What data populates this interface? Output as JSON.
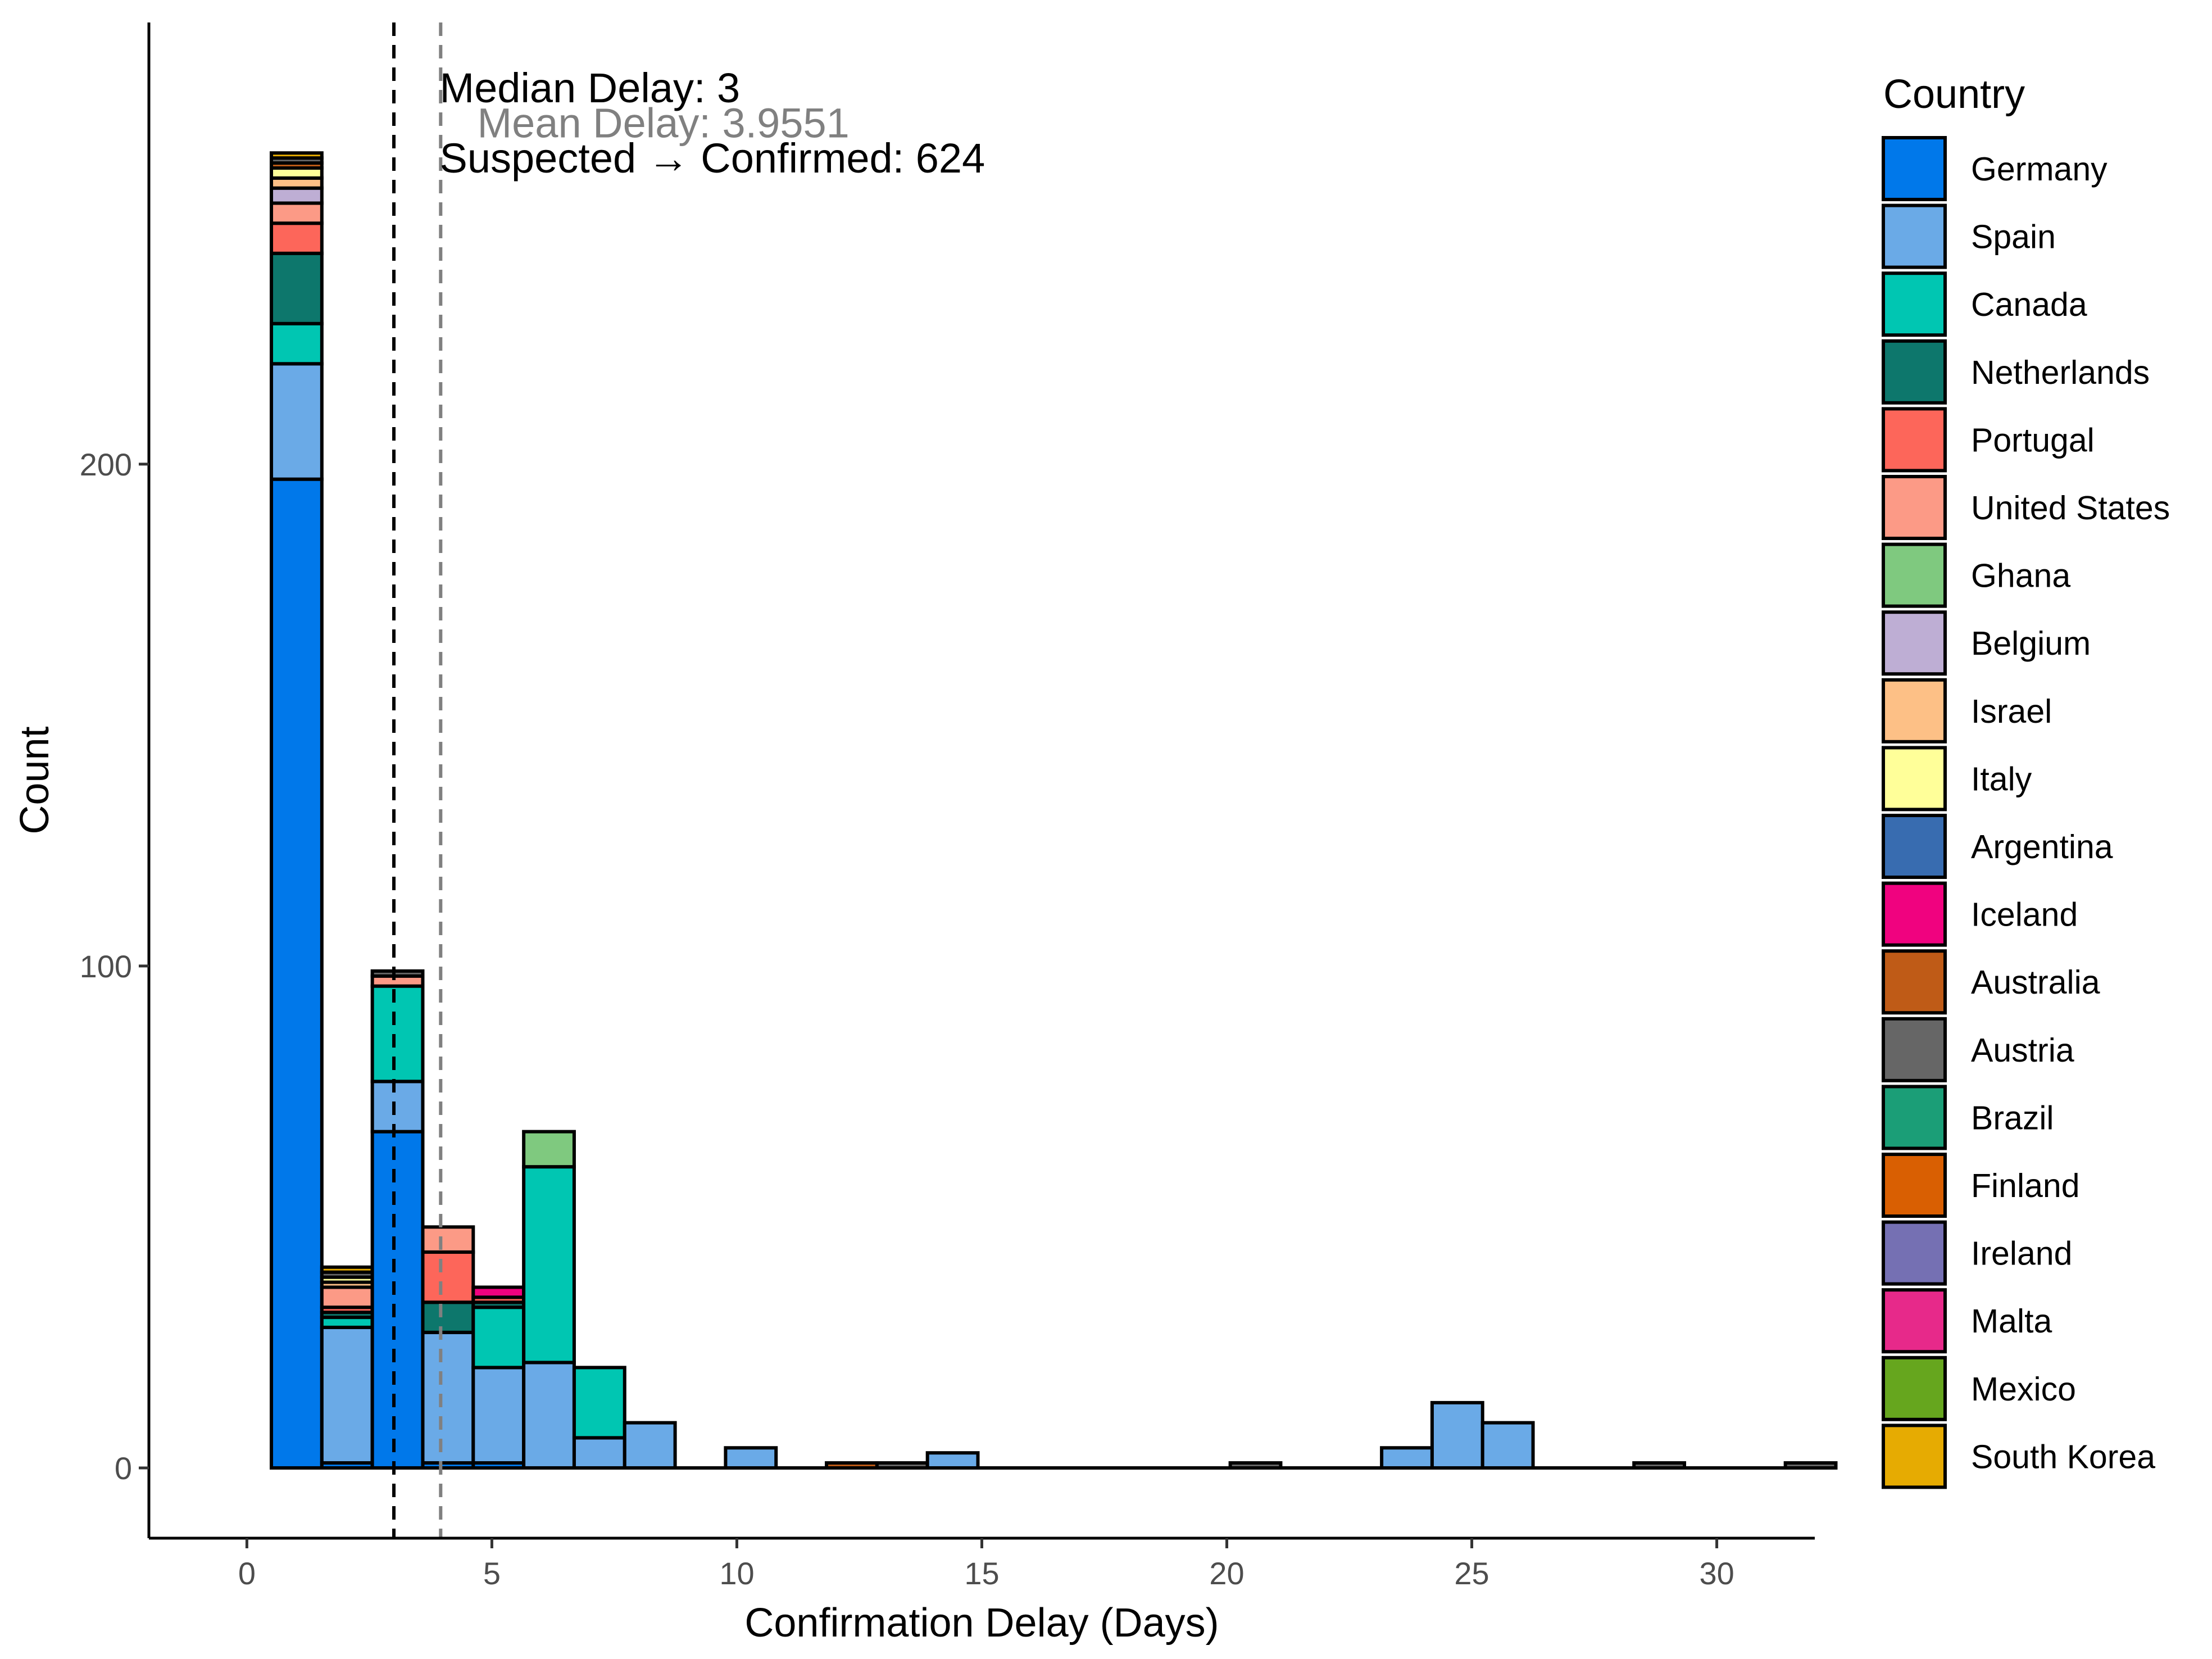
{
  "chart_data": {
    "type": "bar",
    "stacked": true,
    "xlabel": "Confirmation Delay (Days)",
    "ylabel": "Count",
    "xlim": [
      -2,
      32
    ],
    "ylim": [
      -14,
      288
    ],
    "x_ticks": [
      0,
      5,
      10,
      15,
      20,
      25,
      30
    ],
    "y_ticks": [
      0,
      100,
      200
    ],
    "grid": false,
    "bin_width": 1.03,
    "bin_start": 0.5,
    "legend": {
      "title": "Country",
      "position": "right"
    },
    "series": [
      {
        "name": "Germany",
        "color": "#0078EA",
        "values": {
          "1": 197,
          "2": 1,
          "3": 67,
          "4": 1,
          "5": 1
        }
      },
      {
        "name": "Spain",
        "color": "#6AAAE7",
        "values": {
          "1": 23,
          "2": 27,
          "3": 10,
          "4": 26,
          "5": 19,
          "6": 21,
          "7": 6,
          "8": 9,
          "10": 4,
          "14": 3,
          "23": 4,
          "24": 13,
          "25": 9
        }
      },
      {
        "name": "Canada",
        "color": "#00C6B2",
        "values": {
          "1": 8,
          "2": 2,
          "3": 19,
          "5": 12,
          "6": 39,
          "7": 14
        }
      },
      {
        "name": "Netherlands",
        "color": "#0D776C",
        "values": {
          "1": 14,
          "2": 1,
          "4": 6,
          "5": 1
        }
      },
      {
        "name": "Portugal",
        "color": "#FD665A",
        "values": {
          "1": 6,
          "2": 1,
          "4": 10,
          "5": 1
        }
      },
      {
        "name": "United States",
        "color": "#FC9A86",
        "values": {
          "1": 4,
          "2": 4,
          "3": 2,
          "4": 5
        }
      },
      {
        "name": "Ghana",
        "color": "#7FC97F",
        "values": {
          "6": 7
        }
      },
      {
        "name": "Belgium",
        "color": "#BEAED4",
        "values": {
          "1": 3
        }
      },
      {
        "name": "Israel",
        "color": "#FDC086",
        "values": {
          "1": 2,
          "2": 1
        }
      },
      {
        "name": "Italy",
        "color": "#FFFF99",
        "values": {
          "1": 2,
          "2": 1
        }
      },
      {
        "name": "Argentina",
        "color": "#386CB0",
        "values": {}
      },
      {
        "name": "Iceland",
        "color": "#F0027F",
        "values": {
          "5": 2
        }
      },
      {
        "name": "Australia",
        "color": "#BF5B17",
        "values": {
          "1": 1,
          "12": 1
        }
      },
      {
        "name": "Austria",
        "color": "#666666",
        "values": {
          "1": 1,
          "2": 1,
          "3": 1,
          "13": 1,
          "20": 1,
          "28": 1,
          "31": 1
        }
      },
      {
        "name": "Brazil",
        "color": "#1B9E77",
        "values": {}
      },
      {
        "name": "Finland",
        "color": "#D95F02",
        "values": {}
      },
      {
        "name": "Ireland",
        "color": "#7570B3",
        "values": {}
      },
      {
        "name": "Malta",
        "color": "#E7298A",
        "values": {}
      },
      {
        "name": "Mexico",
        "color": "#66A61E",
        "values": {}
      },
      {
        "name": "South Korea",
        "color": "#E6AB02",
        "values": {
          "1": 1,
          "2": 1
        }
      }
    ],
    "reference_lines": [
      {
        "x": 3,
        "color": "#000000",
        "style": "dashed"
      },
      {
        "x": 3.9551,
        "color": "#808080",
        "style": "dashed"
      }
    ],
    "annotations": [
      {
        "text": "Median Delay: 3",
        "color": "#000000",
        "x": 7,
        "y": 275
      },
      {
        "text": "Mean Delay: 3.9551",
        "color": "#808080",
        "x": 8.5,
        "y": 268
      },
      {
        "text": "Suspected → Confirmed: 624",
        "color": "#000000",
        "x": 9.5,
        "y": 261
      }
    ]
  }
}
